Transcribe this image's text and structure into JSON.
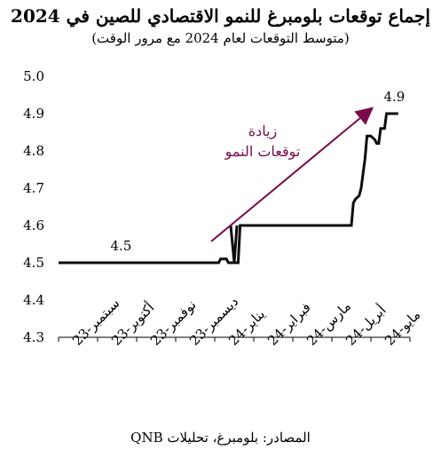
{
  "title": "إجماع توقعات بلومبرغ للنمو الاقتصادي للصين في 2024",
  "subtitle": "(متوسط التوقعات لعام 2024 مع مرور الوقت)",
  "source": "المصادر: بلومبرغ، تحليلات QNB",
  "colors": {
    "line": "#0d0d0d",
    "arrow": "#7a0a4a"
  },
  "chart_data": {
    "type": "line",
    "ylim": [
      4.3,
      5.0
    ],
    "yticks": [
      "5.0",
      "4.9",
      "4.8",
      "4.7",
      "4.6",
      "4.5",
      "4.4",
      "4.3"
    ],
    "xticks": [
      "سبتمبر-23",
      "أكتوبر-23",
      "نوفمبر-23",
      "ديسمبر-23",
      "يناير-24",
      "فبراير-24",
      "مارس-24",
      "أبريل-24",
      "مايو-24"
    ],
    "x": [
      0.0,
      4.1,
      4.15,
      4.3,
      4.35,
      4.6,
      4.65,
      7.5,
      7.55,
      7.6,
      7.7,
      7.75,
      7.85,
      7.9,
      8.0,
      8.1,
      8.15,
      8.2,
      8.25,
      8.35,
      8.4,
      8.45,
      8.5,
      8.55,
      8.6,
      8.65,
      8.7
    ],
    "series": [
      {
        "values": [
          4.5,
          4.5,
          4.51,
          4.51,
          4.5,
          4.5,
          4.6,
          4.6,
          4.66,
          4.67,
          4.68,
          4.7,
          4.78,
          4.84,
          4.84,
          4.83,
          4.82,
          4.82,
          4.86,
          4.86,
          4.9,
          4.9,
          4.9,
          4.9,
          4.9,
          4.9,
          4.9
        ],
        "dip": {
          "x": 4.5,
          "values": [
            4.6,
            4.5,
            4.6
          ]
        }
      }
    ],
    "labels": [
      {
        "text": "4.5",
        "x": 1.6,
        "y": 4.5
      },
      {
        "text": "4.9",
        "x": 8.6,
        "y": 4.9
      }
    ],
    "annotation": {
      "line1": "زيادة",
      "line2": "توقعات النمو"
    }
  }
}
